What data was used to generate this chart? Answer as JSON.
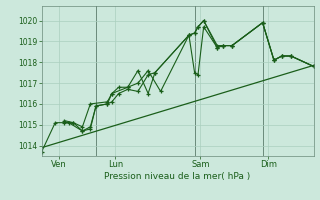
{
  "xlabel": "Pression niveau de la mer( hPa )",
  "bg_color": "#cce8dc",
  "grid_color": "#aacfbe",
  "line_color": "#1a5e1a",
  "vline_color": "#6a8a7a",
  "ylim": [
    1013.5,
    1020.7
  ],
  "xlim": [
    0,
    24
  ],
  "yticks": [
    1014,
    1015,
    1016,
    1017,
    1018,
    1019,
    1020
  ],
  "xtick_positions": [
    1.5,
    6.5,
    14.0,
    20.0
  ],
  "xtick_labels": [
    "Ven",
    "Lun",
    "Sam",
    "Dim"
  ],
  "vlines": [
    4.8,
    13.5,
    19.5
  ],
  "n1": 25,
  "series1_x": [
    0.0,
    1.2,
    2.4,
    3.6,
    4.3,
    4.8,
    5.8,
    6.2,
    6.8,
    7.6,
    8.5,
    9.4,
    10.0,
    13.0,
    13.5,
    13.8,
    14.3,
    15.5,
    16.0,
    16.8,
    19.5,
    20.5,
    21.2,
    22.0,
    24.0
  ],
  "series1_y": [
    1013.7,
    1015.1,
    1015.1,
    1014.7,
    1014.9,
    1015.9,
    1016.0,
    1016.1,
    1016.5,
    1016.7,
    1016.6,
    1017.4,
    1017.5,
    1019.3,
    1019.4,
    1019.7,
    1020.0,
    1018.7,
    1018.8,
    1018.8,
    1019.9,
    1018.1,
    1018.3,
    1018.3,
    1017.8
  ],
  "series2_x": [
    2.0,
    2.8,
    3.6,
    4.3,
    4.8,
    5.8,
    6.2,
    6.8,
    7.6,
    8.5,
    9.4,
    10.0,
    13.0,
    13.5,
    13.8,
    14.3,
    15.5,
    16.0,
    16.8,
    19.5,
    20.5,
    21.2,
    22.0,
    24.0
  ],
  "series2_y": [
    1015.1,
    1015.1,
    1014.7,
    1014.8,
    1015.9,
    1016.0,
    1016.5,
    1016.8,
    1016.8,
    1017.6,
    1016.5,
    1017.5,
    1019.3,
    1019.4,
    1019.7,
    1020.0,
    1018.8,
    1018.8,
    1018.8,
    1019.9,
    1018.1,
    1018.3,
    1018.3,
    1017.8
  ],
  "series3_x": [
    2.0,
    2.8,
    3.6,
    4.3,
    5.8,
    6.2,
    7.6,
    8.5,
    9.4,
    10.5,
    13.0,
    13.5,
    13.8,
    14.3,
    15.5,
    16.0,
    16.8,
    19.5,
    20.5,
    21.2,
    22.0,
    24.0
  ],
  "series3_y": [
    1015.2,
    1015.1,
    1014.9,
    1016.0,
    1016.1,
    1016.5,
    1016.8,
    1017.0,
    1017.6,
    1016.6,
    1019.3,
    1017.5,
    1017.4,
    1019.7,
    1018.7,
    1018.8,
    1018.8,
    1019.9,
    1018.1,
    1018.3,
    1018.3,
    1017.8
  ],
  "trend_x": [
    0.0,
    24.0
  ],
  "trend_y": [
    1013.9,
    1017.85
  ]
}
